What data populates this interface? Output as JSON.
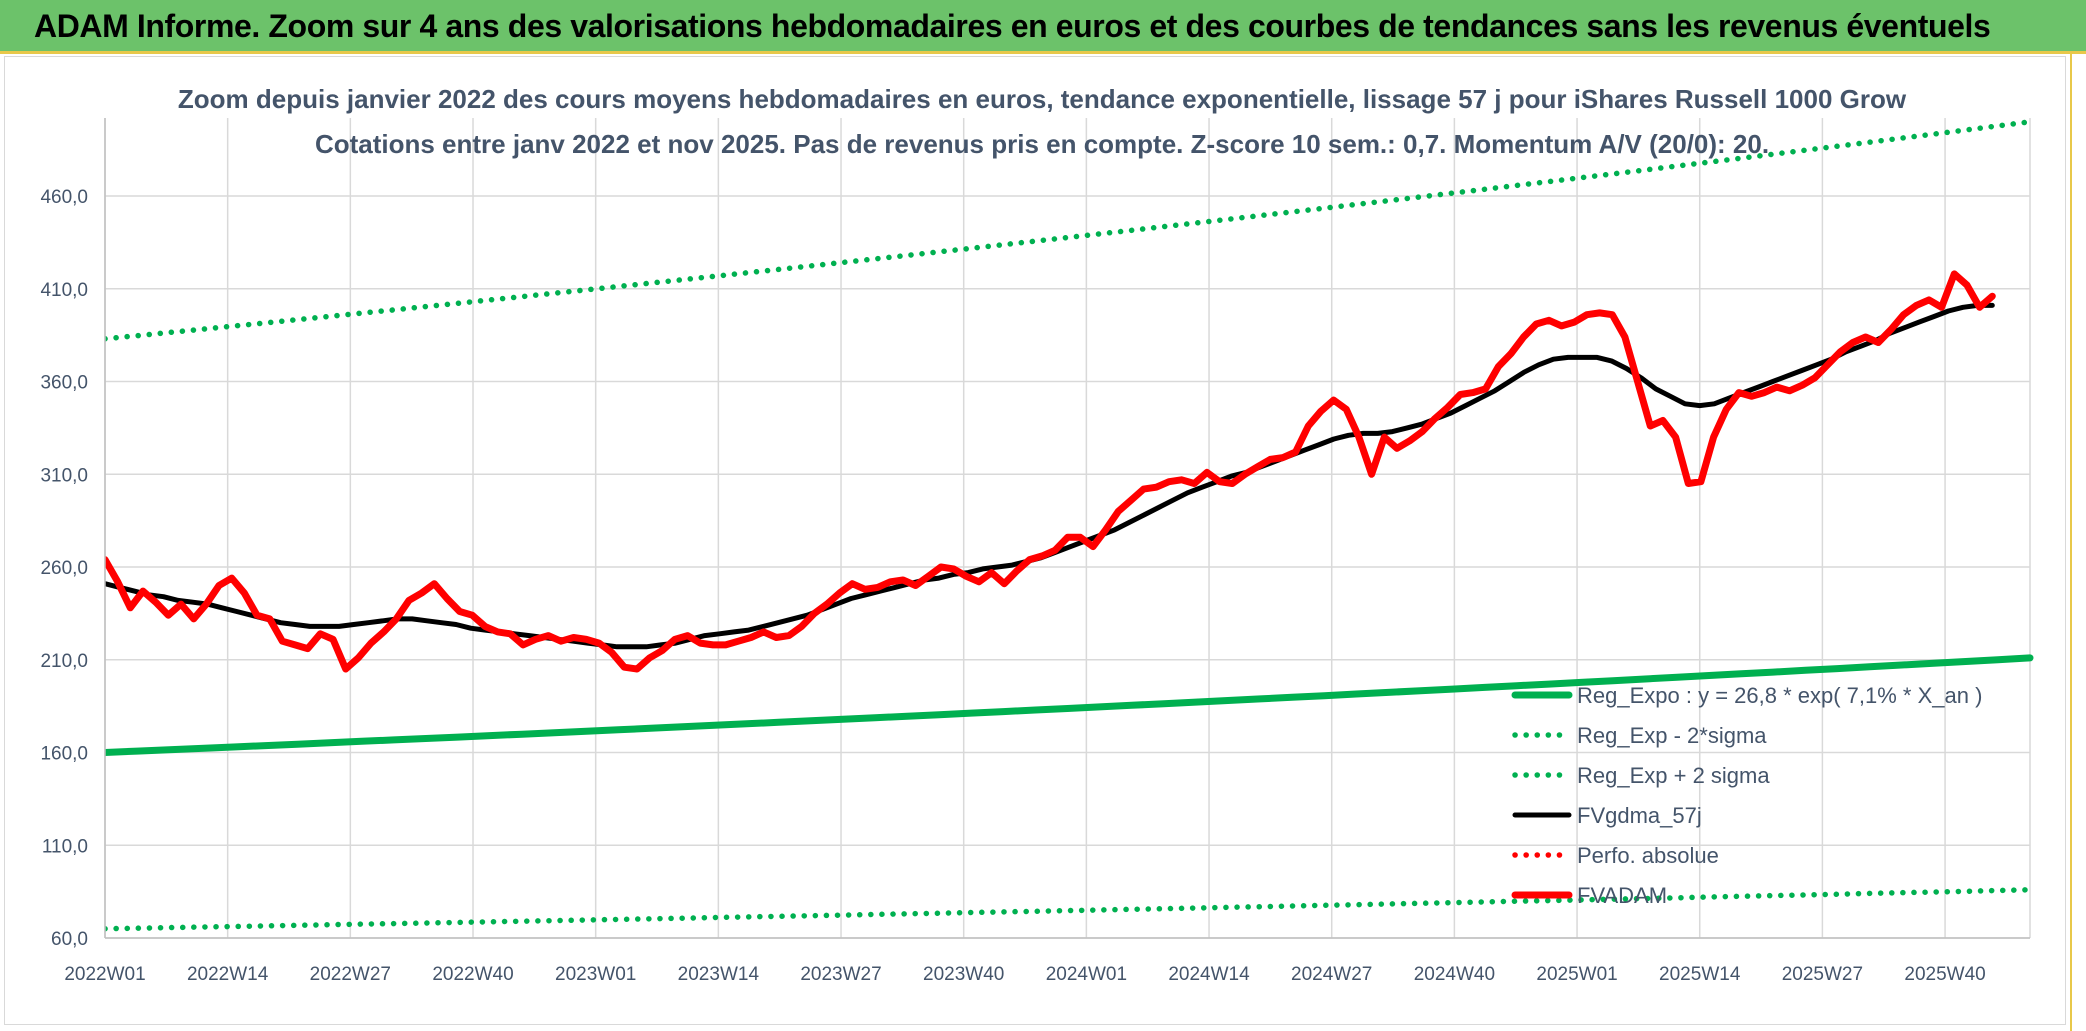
{
  "banner": {
    "title": "ADAM Informe. Zoom sur 4 ans des valorisations hebdomadaires en euros et des courbes de tendances sans les revenus éventuels"
  },
  "colors": {
    "banner_bg": "#6cc26a",
    "banner_accent": "#e8c84a",
    "reg_expo": "#00b050",
    "fvgdma": "#000000",
    "fvadam": "#ff0000",
    "text": "#44546a",
    "grid": "#d9d9d9"
  },
  "chart_data": {
    "type": "line",
    "title_line1": "Zoom depuis janvier 2022 des cours moyens hebdomadaires en euros, tendance exponentielle, lissage 57 j pour iShares Russell 1000 Grow",
    "title_line2": "Cotations entre janv 2022 et nov 2025. Pas de revenus pris en compte. Z-score 10 sem.: 0,7. Momentum A/V (20/0): 20.",
    "ylim": [
      60,
      460
    ],
    "y_ticks": [
      "60,0",
      "110,0",
      "160,0",
      "210,0",
      "260,0",
      "310,0",
      "360,0",
      "410,0",
      "460,0"
    ],
    "x_ticks": [
      "2022W01",
      "2022W14",
      "2022W27",
      "2022W40",
      "2023W01",
      "2023W14",
      "2023W27",
      "2023W40",
      "2024W01",
      "2024W14",
      "2024W27",
      "2024W40",
      "2025W01",
      "2025W14",
      "2025W27",
      "2025W40"
    ],
    "legend_position": "bottom-right",
    "grid": true,
    "series": [
      {
        "name": "Reg_Expo : y = 26,8 * exp( 7,1% *  X_an )",
        "style": "solid-thick",
        "color": "#00b050",
        "start": 160,
        "end": 211
      },
      {
        "name": "Reg_Exp - 2*sigma",
        "style": "dotted",
        "color": "#00b050",
        "start": 65,
        "end": 86
      },
      {
        "name": "Reg_Exp + 2 sigma",
        "style": "dotted",
        "color": "#00b050",
        "start": 383,
        "end": 500
      },
      {
        "name": "FVgdma_57j",
        "style": "solid",
        "color": "#000000",
        "values": [
          251,
          249,
          247,
          245,
          244,
          242,
          241,
          240,
          238,
          236,
          234,
          232,
          230,
          229,
          228,
          228,
          228,
          229,
          230,
          231,
          232,
          232,
          231,
          230,
          229,
          227,
          226,
          225,
          224,
          223,
          222,
          221,
          220,
          219,
          218,
          217,
          217,
          217,
          218,
          219,
          221,
          223,
          224,
          225,
          226,
          228,
          230,
          232,
          234,
          237,
          240,
          243,
          245,
          247,
          249,
          251,
          253,
          254,
          256,
          257,
          259,
          260,
          261,
          263,
          265,
          268,
          271,
          274,
          277,
          280,
          284,
          288,
          292,
          296,
          300,
          303,
          306,
          309,
          311,
          314,
          317,
          320,
          323,
          326,
          329,
          331,
          332,
          332,
          333,
          335,
          337,
          340,
          343,
          347,
          351,
          355,
          360,
          365,
          369,
          372,
          373,
          373,
          373,
          371,
          367,
          362,
          356,
          352,
          348,
          347,
          348,
          351,
          354,
          357,
          360,
          363,
          366,
          369,
          372,
          376,
          379,
          382,
          386,
          389,
          392,
          395,
          398,
          400,
          401,
          401
        ]
      },
      {
        "name": "Perfo. absolue",
        "style": "dotted",
        "color": "#ff0000",
        "values": []
      },
      {
        "name": "FVADAM",
        "style": "solid-thick",
        "color": "#ff0000",
        "values": [
          264,
          252,
          238,
          247,
          241,
          234,
          240,
          232,
          240,
          250,
          254,
          246,
          234,
          232,
          220,
          218,
          216,
          224,
          221,
          205,
          211,
          219,
          225,
          232,
          242,
          246,
          251,
          243,
          236,
          234,
          228,
          225,
          224,
          218,
          221,
          223,
          220,
          222,
          221,
          219,
          214,
          206,
          205,
          211,
          215,
          221,
          223,
          219,
          218,
          218,
          220,
          222,
          225,
          222,
          223,
          228,
          235,
          240,
          246,
          251,
          248,
          249,
          252,
          253,
          250,
          255,
          260,
          259,
          255,
          252,
          257,
          251,
          258,
          264,
          266,
          269,
          276,
          276,
          271,
          280,
          290,
          296,
          302,
          303,
          306,
          307,
          305,
          311,
          306,
          305,
          310,
          314,
          318,
          319,
          322,
          336,
          344,
          350,
          345,
          330,
          310,
          330,
          324,
          328,
          333,
          340,
          346,
          353,
          354,
          356,
          368,
          375,
          384,
          391,
          393,
          390,
          392,
          396,
          397,
          396,
          384,
          360,
          336,
          339,
          330,
          305,
          306,
          330,
          345,
          354,
          352,
          354,
          357,
          355,
          358,
          362,
          369,
          376,
          381,
          384,
          381,
          388,
          396,
          401,
          404,
          400,
          418,
          412,
          400,
          406
        ]
      }
    ]
  }
}
